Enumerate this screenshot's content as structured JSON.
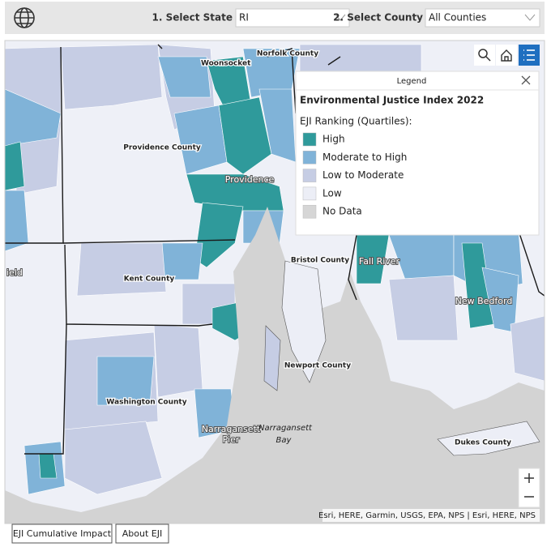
{
  "header": {
    "state_label": "1. Select State",
    "state_value": "RI",
    "county_label": "2. Select County",
    "county_value": "All Counties"
  },
  "map": {
    "labels": [
      "Woonsocket",
      "Norfolk County",
      "Providence County",
      "Providence",
      "Kent County",
      "Bristol County",
      "Fall River",
      "New Bedford",
      "Newport County",
      "Washington County",
      "Narragansett",
      "Pier",
      "Narragansett",
      "Bay",
      "Dukes County",
      "ield"
    ],
    "attribution": "Esri, HERE, Garmin, USGS, EPA, NPS | Esri, HERE, NPS"
  },
  "legend": {
    "header": "Legend",
    "title": "Environmental Justice Index 2022",
    "subtitle": "EJI Ranking (Quartiles):",
    "items": [
      {
        "label": "High",
        "color": "#2f9a9b"
      },
      {
        "label": "Moderate to High",
        "color": "#80b3d8"
      },
      {
        "label": "Low to Moderate",
        "color": "#c6cde4"
      },
      {
        "label": "Low",
        "color": "#eceef6"
      },
      {
        "label": "No Data",
        "color": "#d6d6d6"
      }
    ]
  },
  "tabs": [
    "EJI Cumulative Impact",
    "About EJI"
  ]
}
